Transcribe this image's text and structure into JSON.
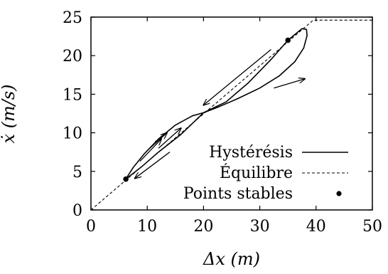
{
  "chart_data": {
    "type": "line",
    "xlabel": "Δx (m)",
    "ylabel": "ẋ (m/s)",
    "xlim": [
      0,
      50
    ],
    "ylim": [
      0,
      25
    ],
    "x_ticks": [
      0,
      10,
      20,
      30,
      40,
      50
    ],
    "y_ticks": [
      0,
      5,
      10,
      15,
      20,
      25
    ],
    "grid": false,
    "legend_position": "bottom-right",
    "series": [
      {
        "name": "Hystérésis",
        "style": "solid",
        "color": "#000000",
        "points": [
          [
            6.2,
            4.0
          ],
          [
            7.5,
            5.5
          ],
          [
            9.5,
            7.3
          ],
          [
            12,
            9.2
          ],
          [
            15,
            11.0
          ],
          [
            18,
            12.2
          ],
          [
            20,
            12.6
          ],
          [
            22.5,
            13.3
          ],
          [
            26,
            14.4
          ],
          [
            30,
            15.8
          ],
          [
            33.5,
            17.4
          ],
          [
            36.2,
            19.2
          ],
          [
            37.8,
            21.0
          ],
          [
            38.4,
            22.6
          ],
          [
            38.3,
            23.4
          ],
          [
            37.5,
            23.5
          ],
          [
            36.0,
            22.6
          ],
          [
            35.0,
            22.0
          ],
          [
            32,
            19.5
          ],
          [
            28,
            16.5
          ],
          [
            24,
            14.0
          ],
          [
            20,
            12.6
          ],
          [
            16,
            9.8
          ],
          [
            12,
            7.5
          ],
          [
            9,
            5.6
          ],
          [
            6.2,
            4.0
          ]
        ],
        "arrows": [
          {
            "from": [
              8.7,
              6.3
            ],
            "to": [
              12.5,
              9.2
            ]
          },
          {
            "from": [
              32.5,
              15.8
            ],
            "to": [
              38.0,
              17.0
            ]
          },
          {
            "from": [
              32.0,
              20.8
            ],
            "to": [
              20.0,
              13.6
            ]
          },
          {
            "from": [
              14.0,
              7.5
            ],
            "to": [
              7.8,
              4.1
            ]
          },
          {
            "from": [
              10.0,
              7.7
            ],
            "to": [
              13.5,
              10.0
            ]
          },
          {
            "from": [
              12.0,
              8.0
            ],
            "to": [
              16.0,
              10.6
            ]
          }
        ]
      },
      {
        "name": "Équilibre",
        "style": "dashed",
        "color": "#000000",
        "points": [
          [
            0,
            0
          ],
          [
            39.5,
            24.6
          ],
          [
            50,
            24.6
          ]
        ]
      },
      {
        "name": "Points stables",
        "style": "points",
        "color": "#000000",
        "points": [
          [
            6.2,
            4.0
          ],
          [
            35.0,
            22.0
          ]
        ]
      }
    ]
  }
}
